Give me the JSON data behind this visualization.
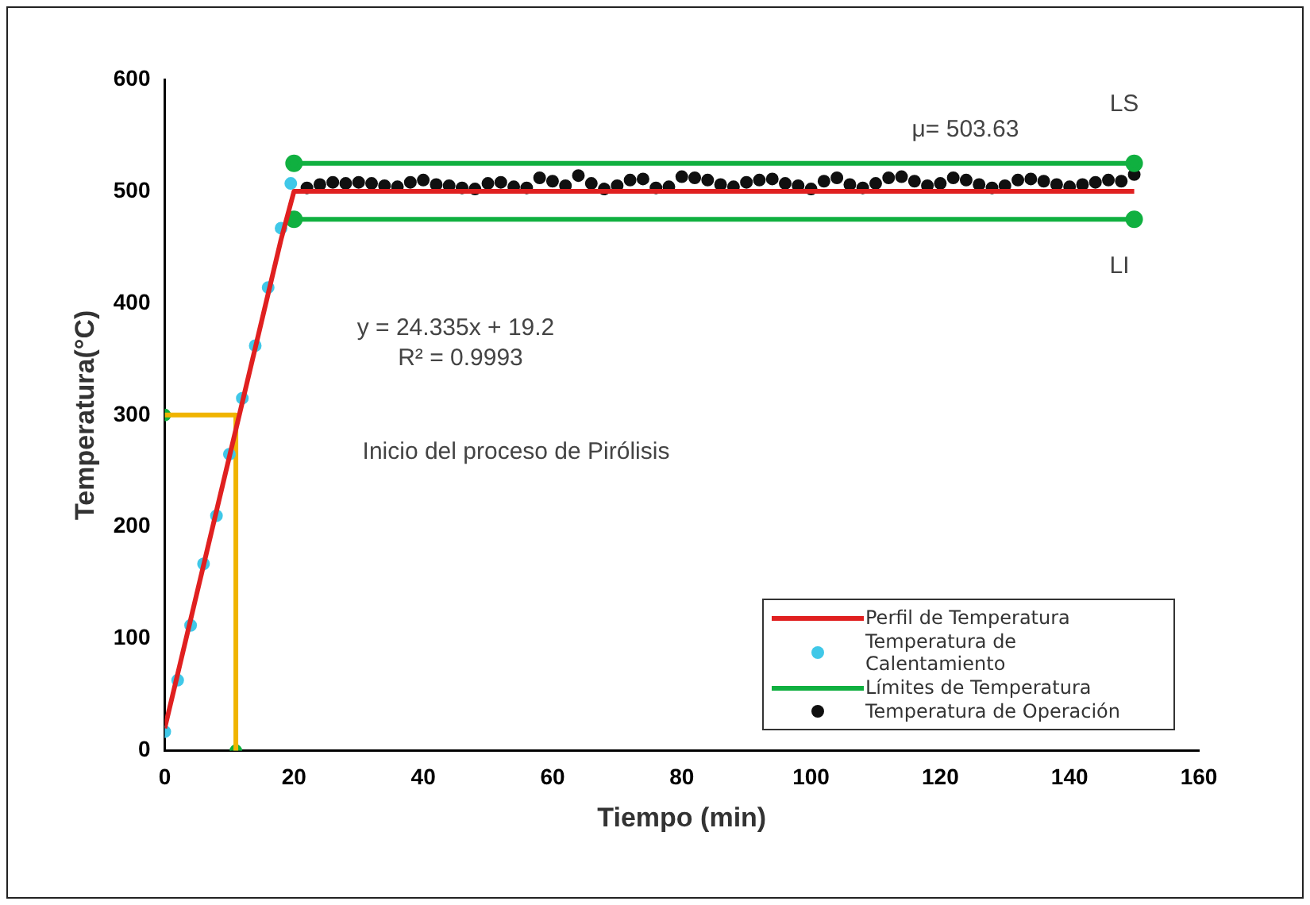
{
  "chart_data": {
    "type": "line",
    "xlabel": "Tiempo (min)",
    "ylabel": "Temperatura(°C)",
    "xlim": [
      0,
      160
    ],
    "xticks": [
      0,
      20,
      40,
      60,
      80,
      100,
      120,
      140,
      160
    ],
    "ylim": [
      0,
      600
    ],
    "yticks": [
      0,
      100,
      200,
      300,
      400,
      500,
      600
    ],
    "grid": false,
    "legend": "bottom right",
    "series": [
      {
        "name": "Perfil de Temperatura",
        "color": "#e02020",
        "marker": "none",
        "x": [
          0,
          18,
          20,
          150
        ],
        "values": [
          20,
          457,
          500,
          500
        ]
      },
      {
        "name": "Temperatura de Calentamiento",
        "type": "scatter",
        "color": "#40c8e8",
        "marker": "circle",
        "x": [
          0,
          2,
          4,
          6,
          8,
          10,
          12,
          14,
          16,
          18,
          19.5
        ],
        "values": [
          17,
          63,
          112,
          167,
          210,
          265,
          315,
          362,
          414,
          467,
          507
        ]
      },
      {
        "name": "Límites de Temperatura",
        "color": "#10b040",
        "marker": "circle",
        "x": [
          20,
          150
        ],
        "values": [
          525,
          525
        ]
      },
      {
        "color": "#10b040",
        "marker": "circle",
        "x": [
          20,
          150
        ],
        "values": [
          475,
          475
        ]
      },
      {
        "color": "#f0b400",
        "marker": "none",
        "x": [
          0,
          11,
          11
        ],
        "values": [
          300,
          300,
          0
        ]
      },
      {
        "type": "scatter",
        "color": "#10b040",
        "marker": "circle",
        "x": [
          0,
          11
        ],
        "values": [
          300,
          0
        ]
      },
      {
        "name": "Temperatura de Operación",
        "type": "scatter",
        "color": "#101010",
        "marker": "circle",
        "x": [
          22,
          24,
          26,
          28,
          30,
          32,
          34,
          36,
          38,
          40,
          42,
          44,
          46,
          48,
          50,
          52,
          54,
          56,
          58,
          60,
          62,
          64,
          66,
          68,
          70,
          72,
          74,
          76,
          78,
          80,
          82,
          84,
          86,
          88,
          90,
          92,
          94,
          96,
          98,
          100,
          102,
          104,
          106,
          108,
          110,
          112,
          114,
          116,
          118,
          120,
          122,
          124,
          126,
          128,
          130,
          132,
          134,
          136,
          138,
          140,
          142,
          144,
          146,
          148,
          150
        ],
        "values": [
          503,
          506,
          508,
          507,
          508,
          507,
          505,
          504,
          508,
          510,
          506,
          505,
          503,
          502,
          507,
          508,
          504,
          503,
          512,
          509,
          505,
          514,
          507,
          502,
          505,
          510,
          511,
          503,
          504,
          513,
          512,
          510,
          506,
          504,
          508,
          510,
          511,
          507,
          505,
          502,
          509,
          512,
          506,
          503,
          507,
          512,
          513,
          509,
          505,
          507,
          512,
          510,
          506,
          503,
          505,
          510,
          511,
          509,
          506,
          504,
          506,
          508,
          510,
          509,
          515
        ]
      }
    ],
    "annotations": [
      "y = 24.335x + 19.2",
      "R² = 0.9993",
      "Inicio del proceso de Pirólisis",
      "μ= 503.63",
      "LS",
      "LI"
    ]
  }
}
